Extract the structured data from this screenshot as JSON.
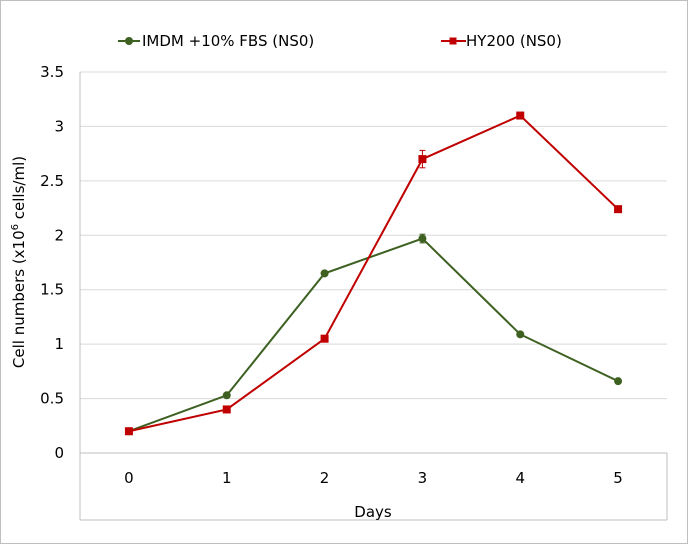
{
  "chart_data": {
    "type": "line",
    "x": [
      0,
      1,
      2,
      3,
      4,
      5
    ],
    "xlabel": "Days",
    "ylabel": {
      "prefix": "Cell numbers (x10",
      "superscript": "6",
      "suffix": " cells/ml)"
    },
    "ylim": [
      0,
      3.5
    ],
    "yticks": [
      "0",
      "0.5",
      "1",
      "1.5",
      "2",
      "2.5",
      "3",
      "3.5"
    ],
    "xticks": [
      "0",
      "1",
      "2",
      "3",
      "4",
      "5"
    ],
    "grid": "horizontal",
    "legend_position": "top",
    "series": [
      {
        "name": "IMDM +10% FBS (NS0)",
        "color": "#3e6122",
        "marker": "circle",
        "values": [
          0.2,
          0.53,
          1.65,
          1.97,
          1.09,
          0.66
        ],
        "errors": [
          0,
          0,
          0,
          0.04,
          0,
          0
        ]
      },
      {
        "name": "HY200 (NS0)",
        "color": "#c00000",
        "marker": "square",
        "values": [
          0.2,
          0.4,
          1.05,
          2.7,
          3.1,
          2.24
        ],
        "errors": [
          0,
          0,
          0,
          0.08,
          0,
          0
        ]
      }
    ]
  }
}
